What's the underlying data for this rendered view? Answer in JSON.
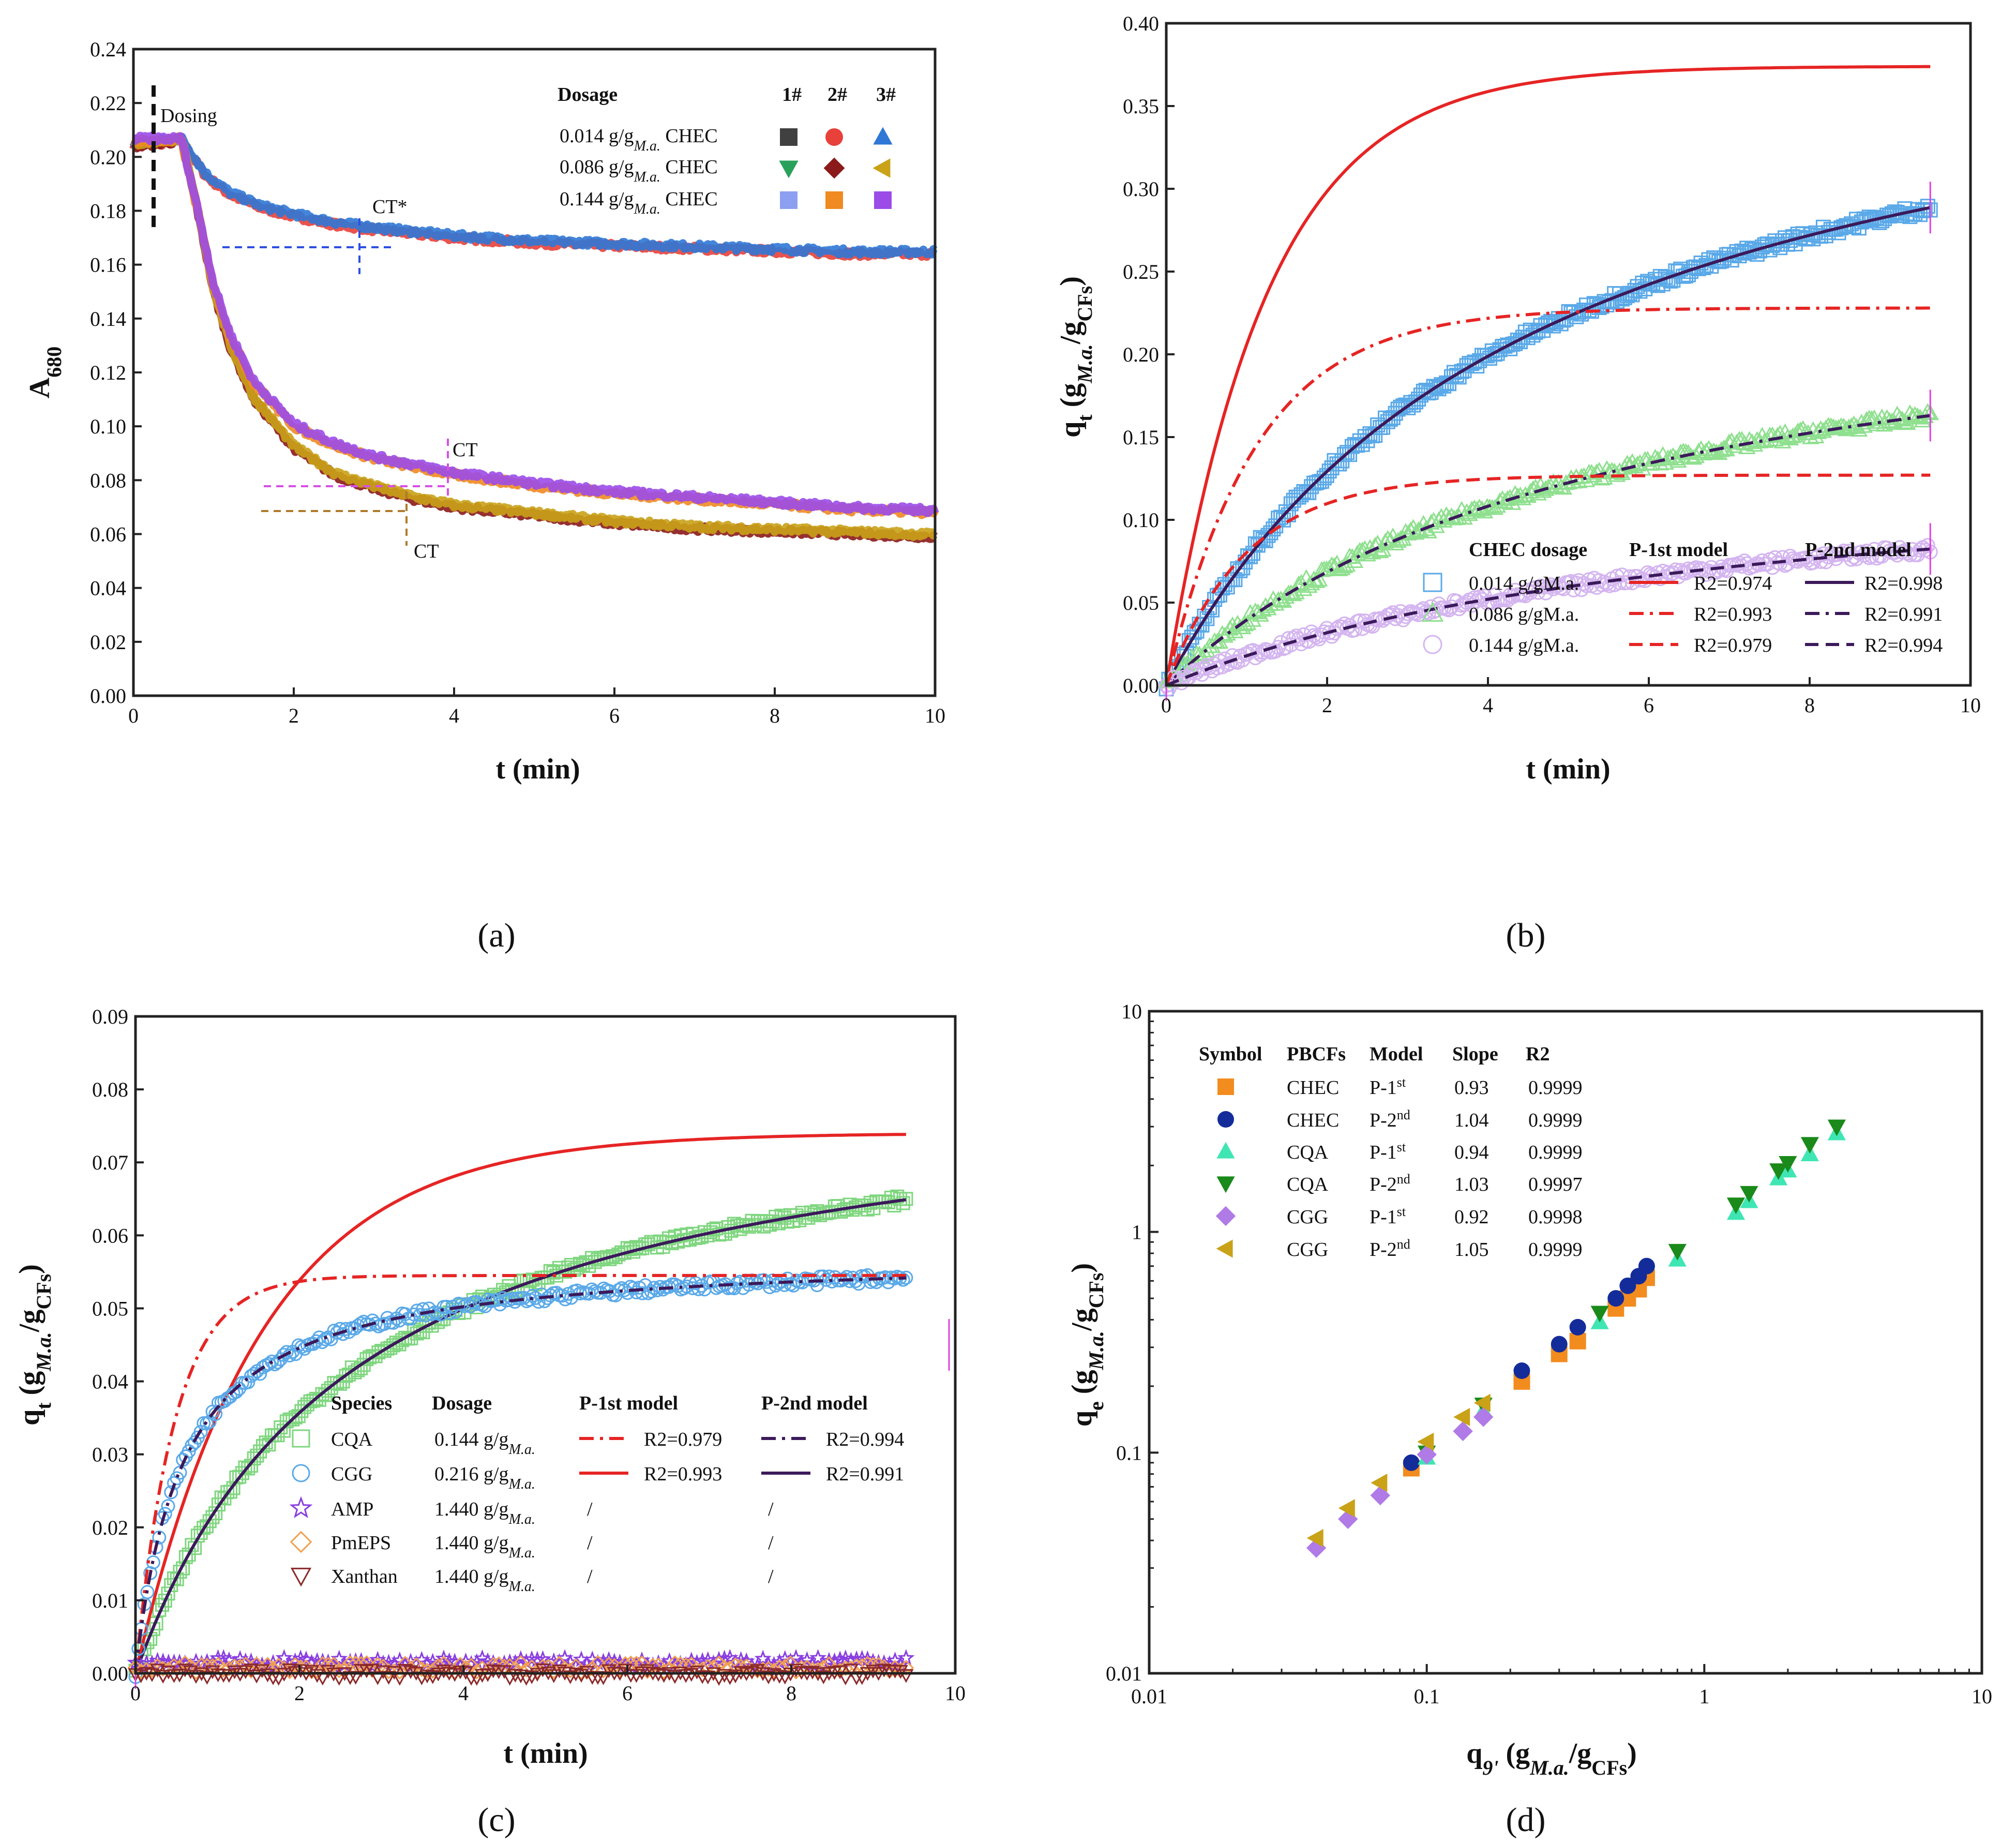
{
  "chart_data": [
    {
      "id": "a",
      "label": "(a)",
      "type": "line",
      "xlabel": "t (min)",
      "ylabel": "A",
      "ylabel_sub": "680",
      "xlim": [
        0,
        10
      ],
      "ylim": [
        0,
        0.24
      ],
      "xticks": [
        "0",
        "2",
        "4",
        "6",
        "8",
        "10"
      ],
      "yticks": [
        "0.00",
        "0.02",
        "0.04",
        "0.06",
        "0.08",
        "0.10",
        "0.12",
        "0.14",
        "0.16",
        "0.18",
        "0.20",
        "0.22",
        "0.24"
      ],
      "annotations": [
        "Dosing",
        "CT*",
        "CT",
        "CT"
      ],
      "legend": {
        "header": [
          "Dosage",
          "1#",
          "2#",
          "3#"
        ],
        "rows": [
          {
            "dosage": "0.014 g/g",
            "sub": "M.a.",
            "suffix": " CHEC",
            "markers": [
              [
                "square",
                "#404040"
              ],
              [
                "circle",
                "#e8403a"
              ],
              [
                "triangle-up",
                "#2f78d6"
              ]
            ]
          },
          {
            "dosage": "0.086 g/g",
            "sub": "M.a.",
            "suffix": " CHEC",
            "markers": [
              [
                "triangle-down",
                "#2aa15a"
              ],
              [
                "diamond",
                "#8b1a1a"
              ],
              [
                "triangle-left",
                "#c9a218"
              ]
            ]
          },
          {
            "dosage": "0.144 g/g",
            "sub": "M.a.",
            "suffix": " CHEC",
            "markers": [
              [
                "square",
                "#8c9ff0"
              ],
              [
                "square",
                "#f08a22"
              ],
              [
                "square",
                "#9b4be8"
              ]
            ]
          }
        ]
      },
      "series": [
        {
          "name": "0.014 g/g CHEC",
          "colors": [
            "#e8403a",
            "#2f78d6"
          ],
          "x": [
            0,
            0.6,
            0.9,
            1.2,
            1.6,
            2.0,
            2.5,
            3.0,
            4.0,
            5.0,
            6.0,
            7.0,
            8.0,
            9.0,
            10.0
          ],
          "y": [
            0.204,
            0.206,
            0.193,
            0.186,
            0.181,
            0.178,
            0.175,
            0.173,
            0.17,
            0.168,
            0.167,
            0.166,
            0.165,
            0.164,
            0.164
          ]
        },
        {
          "name": "0.086 g/g CHEC",
          "colors": [
            "#8b1a1a",
            "#c9a218"
          ],
          "x": [
            0,
            0.6,
            0.8,
            1.0,
            1.2,
            1.5,
            2.0,
            2.5,
            3.0,
            3.5,
            4.0,
            5.0,
            6.0,
            7.0,
            8.0,
            9.0,
            10.0
          ],
          "y": [
            0.204,
            0.206,
            0.18,
            0.15,
            0.13,
            0.11,
            0.092,
            0.082,
            0.077,
            0.073,
            0.07,
            0.067,
            0.064,
            0.062,
            0.061,
            0.06,
            0.059
          ]
        },
        {
          "name": "0.144 g/g CHEC",
          "colors": [
            "#f08a22",
            "#9b4be8"
          ],
          "x": [
            0,
            0.6,
            0.8,
            1.0,
            1.2,
            1.5,
            2.0,
            2.5,
            3.0,
            3.5,
            4.0,
            5.0,
            6.0,
            7.0,
            8.0,
            9.0,
            10.0
          ],
          "y": [
            0.206,
            0.206,
            0.18,
            0.152,
            0.134,
            0.116,
            0.1,
            0.093,
            0.088,
            0.085,
            0.082,
            0.078,
            0.075,
            0.073,
            0.071,
            0.069,
            0.068
          ]
        }
      ]
    },
    {
      "id": "b",
      "label": "(b)",
      "type": "scatter+line",
      "xlabel": "t (min)",
      "ylabel": "q",
      "ylabel_sub": "t",
      "ylabel_unit_a": " (g",
      "ylabel_unit_sub1": "M.a.",
      "ylabel_unit_b": "/g",
      "ylabel_unit_sub2": "CFs",
      "ylabel_unit_c": ")",
      "xlim": [
        0,
        10
      ],
      "ylim": [
        0,
        0.4
      ],
      "xticks": [
        "0",
        "2",
        "4",
        "6",
        "8",
        "10"
      ],
      "yticks": [
        "0.00",
        "0.05",
        "0.10",
        "0.15",
        "0.20",
        "0.25",
        "0.30",
        "0.35",
        "0.40"
      ],
      "legend": {
        "header": [
          "CHEC dosage",
          "P-1st model",
          "P-2nd model"
        ],
        "rows": [
          {
            "dosage": "0.014 g/gM.a.",
            "p1": "R2=0.974",
            "p2": "R2=0.998",
            "marker": "square"
          },
          {
            "dosage": "0.086 g/gM.a.",
            "p1": "R2=0.993",
            "p2": "R2=0.991",
            "marker": "triangle-up"
          },
          {
            "dosage": "0.144 g/gM.a.",
            "p1": "R2=0.979",
            "p2": "R2=0.994",
            "marker": "circle"
          }
        ]
      },
      "series": [
        {
          "name": "0.014 g/gM.a.",
          "marker_color": "#5aa9e8",
          "t_max": 9.5,
          "data_qe": 0.43,
          "data_k": 0.5,
          "p1_qe": 0.374,
          "p1_k": 0.8,
          "p2_qe": 0.43,
          "p2_k": 0.5,
          "p1_style": "solid",
          "p2_style": "solid"
        },
        {
          "name": "0.086 g/gM.a.",
          "marker_color": "#8fe08f",
          "t_max": 9.5,
          "data_qe": 0.258,
          "data_k": 0.7,
          "p1_qe": 0.228,
          "p1_k": 0.9,
          "p2_qe": 0.258,
          "p2_k": 0.7,
          "p1_style": "dashdot",
          "p2_style": "dashdot"
        },
        {
          "name": "0.144 g/gM.a.",
          "marker_color": "#d4b5f0",
          "t_max": 9.5,
          "data_qe": 0.143,
          "data_k": 1.0,
          "p1_qe": 0.127,
          "p1_k": 1.0,
          "p2_qe": 0.143,
          "p2_k": 1.0,
          "p1_style": "dashed",
          "p2_style": "dashed"
        }
      ]
    },
    {
      "id": "c",
      "label": "(c)",
      "type": "scatter+line",
      "xlabel": "t (min)",
      "ylabel": "q",
      "ylabel_sub": "t",
      "ylabel_unit_a": " (g",
      "ylabel_unit_sub1": "M.a.",
      "ylabel_unit_b": "/g",
      "ylabel_unit_sub2": "CFs",
      "ylabel_unit_c": ")",
      "xlim": [
        0,
        10
      ],
      "ylim": [
        0,
        0.09
      ],
      "xticks": [
        "0",
        "2",
        "4",
        "6",
        "8",
        "10"
      ],
      "yticks": [
        "0.00",
        "0.01",
        "0.02",
        "0.03",
        "0.04",
        "0.05",
        "0.06",
        "0.07",
        "0.08",
        "0.09"
      ],
      "legend": {
        "header": [
          "Species",
          "Dosage",
          "P-1st model",
          "P-2nd model"
        ],
        "rows": [
          {
            "species": "CQA",
            "dosage": "0.144 g/g",
            "sub": "M.a.",
            "p1": "R2=0.979",
            "p2": "R2=0.994",
            "marker": "square",
            "color": "#7fd67f"
          },
          {
            "species": "CGG",
            "dosage": "0.216 g/g",
            "sub": "M.a.",
            "p1": "R2=0.993",
            "p2": "R2=0.991",
            "marker": "circle",
            "color": "#5aa9e8"
          },
          {
            "species": "AMP",
            "dosage": "1.440 g/g",
            "sub": "M.a.",
            "p1": "/",
            "p2": "/",
            "marker": "star",
            "color": "#8a3ee0"
          },
          {
            "species": "PmEPS",
            "dosage": "1.440 g/g",
            "sub": "M.a.",
            "p1": "/",
            "p2": "/",
            "marker": "diamond",
            "color": "#f0a050"
          },
          {
            "species": "Xanthan",
            "dosage": "1.440 g/g",
            "sub": "M.a.",
            "p1": "/",
            "p2": "/",
            "marker": "triangle-down",
            "color": "#8b2a2a"
          }
        ]
      },
      "series": [
        {
          "name": "CQA",
          "marker_color": "#7fd67f",
          "t_max": 9.4,
          "data_qe": 0.0833,
          "data_k": 4.5,
          "p1_qe": 0.074,
          "p1_k": 0.65,
          "p2_qe": 0.0833,
          "p2_k": 4.5,
          "p1_style": "solid",
          "p2_style": "solid"
        },
        {
          "name": "CGG",
          "marker_color": "#5aa9e8",
          "t_max": 9.4,
          "data_qe": 0.0575,
          "data_k": 30,
          "p1_qe": 0.0545,
          "p1_k": 2.1,
          "p2_qe": 0.0575,
          "p2_k": 30,
          "p1_style": "dashdot",
          "p2_style": "dashdot"
        },
        {
          "name": "AMP",
          "marker_color": "#8a3ee0",
          "flat": 0.0015
        },
        {
          "name": "PmEPS",
          "marker_color": "#f0a050",
          "flat": 0.0008
        },
        {
          "name": "Xanthan",
          "marker_color": "#8b2a2a",
          "flat": 0.0
        }
      ]
    },
    {
      "id": "d",
      "label": "(d)",
      "type": "scatter",
      "scale": "log-log",
      "xlabel": "q",
      "xlabel_sub": "9'",
      "xlabel_unit_a": " (g",
      "xlabel_unit_sub1": "M.a.",
      "xlabel_unit_b": "/g",
      "xlabel_unit_sub2": "CFs",
      "xlabel_unit_c": ")",
      "ylabel": "q",
      "ylabel_sub": "e",
      "ylabel_unit_a": " (g",
      "ylabel_unit_sub1": "M.a.",
      "ylabel_unit_b": "/g",
      "ylabel_unit_sub2": "CFs",
      "ylabel_unit_c": ")",
      "xlim": [
        0.01,
        10
      ],
      "ylim": [
        0.01,
        10
      ],
      "xticks": [
        "0.01",
        "0.1",
        "1",
        "10"
      ],
      "yticks": [
        "0.01",
        "0.1",
        "1",
        "10"
      ],
      "legend": {
        "header": [
          "Symbol",
          "PBCFs",
          "Model",
          "Slope",
          "R2"
        ],
        "rows": [
          {
            "pbcfs": "CHEC",
            "model": "P-1",
            "sup": "st",
            "slope": "0.93",
            "r2": "0.9999",
            "marker": "square",
            "color": "#f28c1e"
          },
          {
            "pbcfs": "CHEC",
            "model": "P-2",
            "sup": "nd",
            "slope": "1.04",
            "r2": "0.9999",
            "marker": "circle",
            "color": "#142c9a"
          },
          {
            "pbcfs": "CQA",
            "model": "P-1",
            "sup": "st",
            "slope": "0.94",
            "r2": "0.9999",
            "marker": "triangle-up",
            "color": "#3fe6b4"
          },
          {
            "pbcfs": "CQA",
            "model": "P-2",
            "sup": "nd",
            "slope": "1.03",
            "r2": "0.9997",
            "marker": "triangle-down",
            "color": "#1a8a1a"
          },
          {
            "pbcfs": "CGG",
            "model": "P-1",
            "sup": "st",
            "slope": "0.92",
            "r2": "0.9998",
            "marker": "diamond",
            "color": "#b07be6"
          },
          {
            "pbcfs": "CGG",
            "model": "P-2",
            "sup": "nd",
            "slope": "1.05",
            "r2": "0.9999",
            "marker": "triangle-left",
            "color": "#c9a218"
          }
        ]
      },
      "series": [
        {
          "name": "CHEC P-1st",
          "x": [
            0.088,
            0.22,
            0.3,
            0.35,
            0.48,
            0.53,
            0.58,
            0.62
          ],
          "y": [
            0.085,
            0.21,
            0.28,
            0.32,
            0.45,
            0.5,
            0.55,
            0.62
          ]
        },
        {
          "name": "CHEC P-2nd",
          "x": [
            0.088,
            0.22,
            0.3,
            0.35,
            0.48,
            0.53,
            0.58,
            0.62
          ],
          "y": [
            0.09,
            0.235,
            0.31,
            0.37,
            0.5,
            0.57,
            0.63,
            0.7
          ]
        },
        {
          "name": "CQA P-1st",
          "x": [
            0.1,
            0.16,
            0.42,
            0.8,
            1.3,
            1.45,
            1.85,
            2.0,
            2.4,
            3.0
          ],
          "y": [
            0.095,
            0.155,
            0.39,
            0.75,
            1.22,
            1.38,
            1.75,
            1.9,
            2.25,
            2.8
          ]
        },
        {
          "name": "CQA P-2nd",
          "x": [
            0.1,
            0.16,
            0.42,
            0.8,
            1.3,
            1.45,
            1.85,
            2.0,
            2.4,
            3.0
          ],
          "y": [
            0.1,
            0.165,
            0.43,
            0.82,
            1.33,
            1.5,
            1.9,
            2.05,
            2.5,
            3.0
          ]
        },
        {
          "name": "CGG P-1st",
          "x": [
            0.04,
            0.052,
            0.068,
            0.1,
            0.135,
            0.16
          ],
          "y": [
            0.037,
            0.05,
            0.064,
            0.098,
            0.125,
            0.145
          ]
        },
        {
          "name": "CGG P-2nd",
          "x": [
            0.04,
            0.052,
            0.068,
            0.1,
            0.135,
            0.16
          ],
          "y": [
            0.041,
            0.056,
            0.073,
            0.112,
            0.145,
            0.168
          ]
        }
      ]
    }
  ]
}
